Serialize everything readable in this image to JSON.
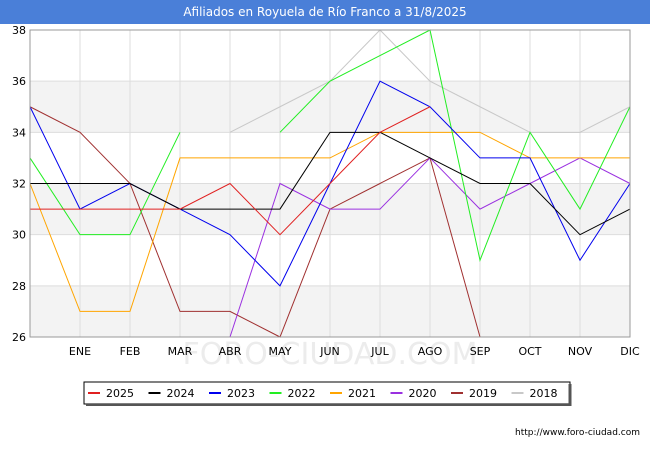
{
  "chart_data": {
    "type": "line",
    "title": "Afiliados en Royuela de Río Franco a 31/8/2025",
    "categories": [
      "",
      "ENE",
      "FEB",
      "MAR",
      "ABR",
      "MAY",
      "JUN",
      "JUL",
      "AGO",
      "SEP",
      "OCT",
      "NOV",
      "DIC"
    ],
    "ylim": [
      26,
      38
    ],
    "yticks": [
      26,
      28,
      30,
      32,
      34,
      36,
      38
    ],
    "grid": true,
    "legend_position": "bottom",
    "watermark": "FORO-CIUDAD.COM",
    "series": [
      {
        "name": "2025",
        "color": "#e02020",
        "values": [
          31,
          31,
          31,
          31,
          32,
          30,
          32,
          34,
          35,
          null,
          null,
          null,
          null
        ]
      },
      {
        "name": "2024",
        "color": "#000000",
        "values": [
          32,
          32,
          32,
          31,
          31,
          31,
          34,
          34,
          33,
          32,
          32,
          30,
          31
        ]
      },
      {
        "name": "2023",
        "color": "#0000ee",
        "values": [
          35,
          31,
          32,
          31,
          30,
          28,
          32,
          36,
          35,
          33,
          33,
          29,
          32
        ]
      },
      {
        "name": "2022",
        "color": "#22ee22",
        "values": [
          33,
          30,
          30,
          34,
          null,
          34,
          36,
          37,
          38,
          29,
          34,
          31,
          35
        ]
      },
      {
        "name": "2021",
        "color": "#ffa500",
        "values": [
          32,
          27,
          27,
          33,
          33,
          33,
          33,
          34,
          34,
          34,
          33,
          33,
          33
        ]
      },
      {
        "name": "2020",
        "color": "#9a30e0",
        "values": [
          null,
          null,
          null,
          null,
          26,
          32,
          31,
          31,
          33,
          31,
          32,
          33,
          32
        ]
      },
      {
        "name": "2019",
        "color": "#a03030",
        "values": [
          35,
          34,
          32,
          27,
          27,
          26,
          31,
          32,
          33,
          26,
          null,
          null,
          null
        ]
      },
      {
        "name": "2018",
        "color": "#c8c8c8",
        "values": [
          35,
          null,
          null,
          null,
          34,
          35,
          36,
          38,
          36,
          35,
          34,
          34,
          35
        ]
      }
    ]
  },
  "footer": {
    "url": "http://www.foro-ciudad.com"
  }
}
